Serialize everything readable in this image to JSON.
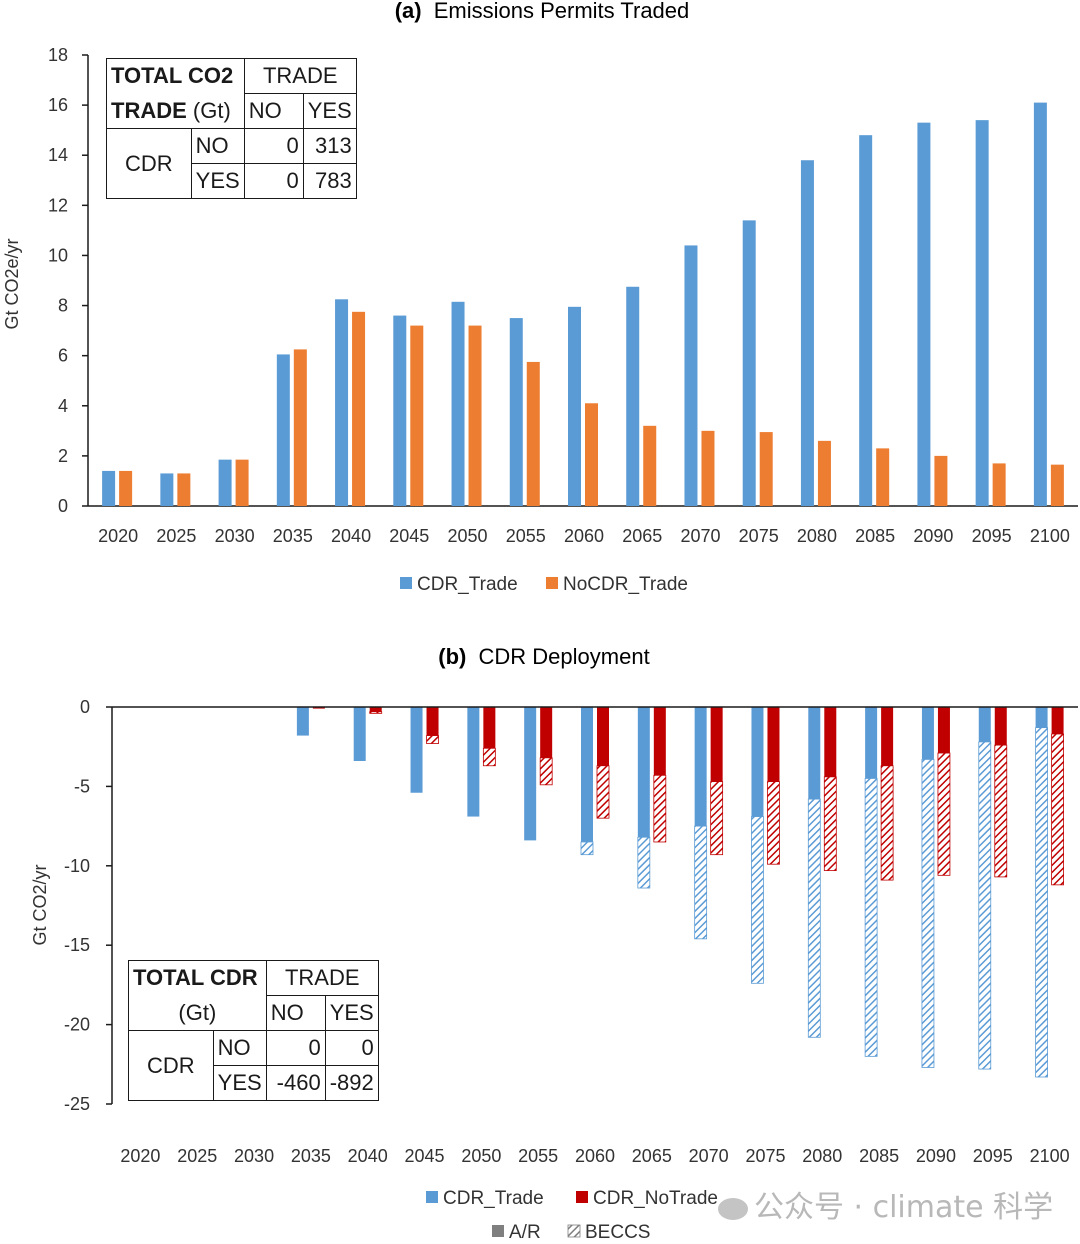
{
  "chart_data": [
    {
      "type": "bar",
      "panel_label": "(a)",
      "title": "Emissions Permits Traded",
      "ylabel": "Gt CO2e/yr",
      "xlabel": "",
      "ylim": [
        0,
        18
      ],
      "yticks": [
        "0",
        "2",
        "4",
        "6",
        "8",
        "10",
        "12",
        "14",
        "16",
        "18"
      ],
      "categories": [
        "2020",
        "2025",
        "2030",
        "2035",
        "2040",
        "2045",
        "2050",
        "2055",
        "2060",
        "2065",
        "2070",
        "2075",
        "2080",
        "2085",
        "2090",
        "2095",
        "2100"
      ],
      "series": [
        {
          "name": "CDR_Trade",
          "color": "#5b9bd5",
          "values": [
            1.4,
            1.3,
            1.85,
            6.05,
            8.25,
            7.6,
            8.15,
            7.5,
            7.95,
            8.75,
            10.4,
            11.4,
            13.8,
            14.8,
            15.3,
            15.4,
            16.1
          ]
        },
        {
          "name": "NoCDR_Trade",
          "color": "#ed7d31",
          "values": [
            1.4,
            1.3,
            1.85,
            6.25,
            7.75,
            7.2,
            7.2,
            5.75,
            4.1,
            3.2,
            3.0,
            2.95,
            2.6,
            2.3,
            2.0,
            1.7,
            1.65
          ]
        }
      ],
      "legend_position": "bottom",
      "grid": false,
      "inset_table": {
        "title_line1": "TOTAL CO2",
        "title_line2_bold": "TRADE",
        "title_line2_rest": " (Gt)",
        "col_group": "TRADE",
        "cols": [
          "NO",
          "YES"
        ],
        "row_group": "CDR",
        "rows": [
          {
            "label": "NO",
            "values": [
              "0",
              "313"
            ]
          },
          {
            "label": "YES",
            "values": [
              "0",
              "783"
            ]
          }
        ]
      }
    },
    {
      "type": "bar",
      "panel_label": "(b)",
      "title": "CDR Deployment",
      "ylabel": "Gt CO2/yr",
      "xlabel": "",
      "ylim": [
        -25,
        0
      ],
      "yticks": [
        "0",
        "-5",
        "-10",
        "-15",
        "-20",
        "-25"
      ],
      "categories": [
        "2020",
        "2025",
        "2030",
        "2035",
        "2040",
        "2045",
        "2050",
        "2055",
        "2060",
        "2065",
        "2070",
        "2075",
        "2080",
        "2085",
        "2090",
        "2095",
        "2100"
      ],
      "series": [
        {
          "name": "CDR_Trade",
          "color": "#5b9bd5",
          "ar_values": [
            0,
            0,
            0,
            -1.8,
            -3.4,
            -5.4,
            -6.9,
            -8.4,
            -8.5,
            -8.2,
            -7.5,
            -6.9,
            -5.8,
            -4.5,
            -3.3,
            -2.2,
            -1.3
          ],
          "beccs_values": [
            0,
            0,
            0,
            0,
            0,
            0,
            0,
            0,
            -0.8,
            -3.2,
            -7.1,
            -10.5,
            -15.0,
            -17.5,
            -19.4,
            -20.6,
            -22.0
          ]
        },
        {
          "name": "CDR_NoTrade",
          "color": "#c00000",
          "ar_values": [
            0,
            0,
            0,
            -0.1,
            -0.3,
            -1.8,
            -2.6,
            -3.2,
            -3.7,
            -4.3,
            -4.7,
            -4.7,
            -4.4,
            -3.7,
            -2.9,
            -2.4,
            -1.7
          ],
          "beccs_values": [
            0,
            0,
            0,
            0,
            -0.1,
            -0.5,
            -1.1,
            -1.7,
            -3.3,
            -4.2,
            -4.6,
            -5.2,
            -5.9,
            -7.2,
            -7.7,
            -8.3,
            -9.5
          ]
        }
      ],
      "legend": [
        {
          "name": "CDR_Trade",
          "color": "#5b9bd5",
          "style": "solid"
        },
        {
          "name": "CDR_NoTrade",
          "color": "#c00000",
          "style": "solid"
        },
        {
          "name": "A/R",
          "color": "#7f7f7f",
          "style": "solid"
        },
        {
          "name": "BECCS",
          "color": "#7f7f7f",
          "style": "hatched"
        }
      ],
      "legend_position": "bottom",
      "grid": false,
      "inset_table": {
        "title_line1": "TOTAL CDR",
        "title_line2": "(Gt)",
        "col_group": "TRADE",
        "cols": [
          "NO",
          "YES"
        ],
        "row_group": "CDR",
        "rows": [
          {
            "label": "NO",
            "values": [
              "0",
              "0"
            ]
          },
          {
            "label": "YES",
            "values": [
              "-460",
              "-892"
            ]
          }
        ]
      }
    }
  ],
  "watermark": "公众号 · climate 科学"
}
